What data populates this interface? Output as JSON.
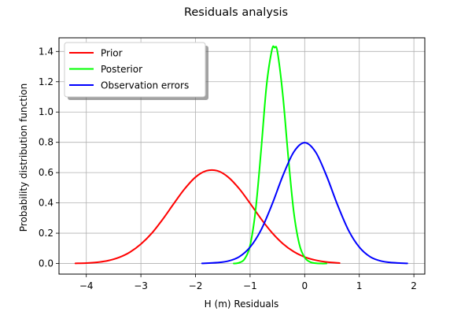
{
  "chart_data": {
    "type": "line",
    "title": "Residuals analysis",
    "xlabel": "H (m) Residuals",
    "ylabel": "Probability distribution function",
    "xlim": [
      -4.5,
      2.2
    ],
    "ylim": [
      -0.07,
      1.49
    ],
    "xticks": [
      -4,
      -3,
      -2,
      -1,
      0,
      1,
      2
    ],
    "yticks": [
      0.0,
      0.2,
      0.4,
      0.6,
      0.8,
      1.0,
      1.2,
      1.4
    ],
    "xtick_labels": [
      "−4",
      "−3",
      "−2",
      "−1",
      "0",
      "1",
      "2"
    ],
    "ytick_labels": [
      "0.0",
      "0.2",
      "0.4",
      "0.6",
      "0.8",
      "1.0",
      "1.2",
      "1.4"
    ],
    "grid": true,
    "legend_position": "upper left",
    "series": [
      {
        "name": "Prior",
        "color": "#ff0000",
        "x": [
          -4.2,
          -4.0,
          -3.8,
          -3.6,
          -3.4,
          -3.2,
          -3.0,
          -2.8,
          -2.6,
          -2.4,
          -2.2,
          -2.0,
          -1.8,
          -1.6,
          -1.4,
          -1.2,
          -1.0,
          -0.8,
          -0.6,
          -0.4,
          -0.2,
          0.0,
          0.2,
          0.4,
          0.64
        ],
        "y": [
          0.001,
          0.003,
          0.008,
          0.019,
          0.04,
          0.075,
          0.128,
          0.2,
          0.292,
          0.394,
          0.492,
          0.57,
          0.612,
          0.612,
          0.57,
          0.494,
          0.397,
          0.295,
          0.204,
          0.131,
          0.078,
          0.043,
          0.022,
          0.01,
          0.003
        ]
      },
      {
        "name": "Posterior",
        "color": "#00ff00",
        "x": [
          -1.3,
          -1.2,
          -1.1,
          -1.0,
          -0.9,
          -0.8,
          -0.7,
          -0.6,
          -0.55,
          -0.5,
          -0.4,
          -0.3,
          -0.2,
          -0.1,
          0.0,
          0.1,
          0.2,
          0.3,
          0.4
        ],
        "y": [
          0.0,
          0.005,
          0.03,
          0.12,
          0.35,
          0.74,
          1.17,
          1.41,
          1.425,
          1.4,
          1.11,
          0.7,
          0.34,
          0.13,
          0.04,
          0.01,
          0.002,
          0.0,
          0.0
        ]
      },
      {
        "name": "Observation errors",
        "color": "#0000ff",
        "x": [
          -1.88,
          -1.6,
          -1.4,
          -1.2,
          -1.0,
          -0.8,
          -0.6,
          -0.4,
          -0.2,
          0.0,
          0.2,
          0.4,
          0.6,
          0.8,
          1.0,
          1.2,
          1.4,
          1.6,
          1.88
        ],
        "y": [
          0.001,
          0.006,
          0.016,
          0.044,
          0.108,
          0.221,
          0.388,
          0.579,
          0.736,
          0.798,
          0.736,
          0.579,
          0.388,
          0.221,
          0.108,
          0.044,
          0.016,
          0.006,
          0.001
        ]
      }
    ]
  }
}
